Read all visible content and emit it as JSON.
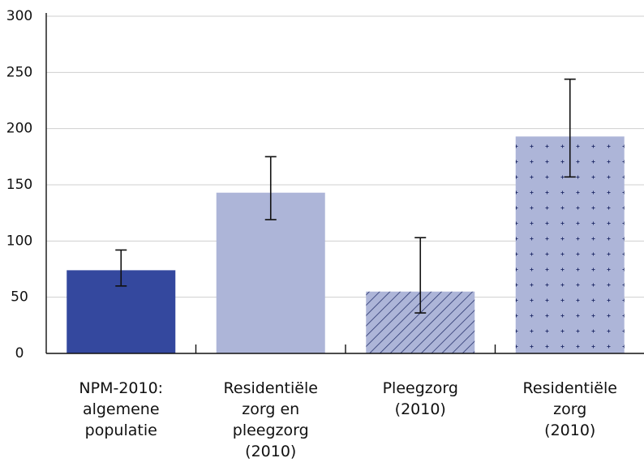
{
  "chart_data": {
    "type": "bar",
    "categories": [
      "NPM-2010:\nalgemene\npopulatie",
      "Residentiële\nzorg en\npleegzorg\n(2010)",
      "Pleegzorg\n(2010)",
      "Residentiële\nzorg\n(2010)"
    ],
    "values": [
      74,
      143,
      55,
      193
    ],
    "err_low": [
      60,
      119,
      36,
      157
    ],
    "err_high": [
      92,
      175,
      103,
      244
    ],
    "colors": [
      "#34489e",
      "#adb5d8",
      "#adb5d8",
      "#adb5d8"
    ],
    "patterns": [
      "solid",
      "solid",
      "hatch",
      "dots"
    ],
    "ylim": [
      0,
      300
    ],
    "yticks": [
      0,
      50,
      100,
      150,
      200,
      250,
      300
    ],
    "grid": true
  }
}
